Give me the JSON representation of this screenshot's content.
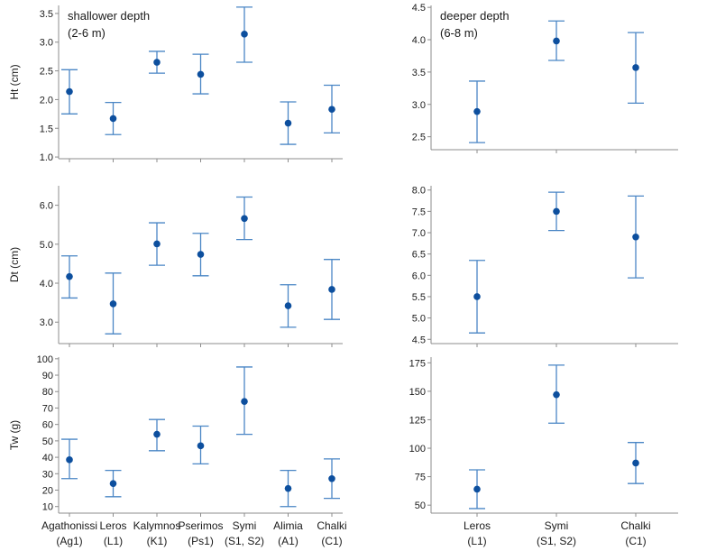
{
  "colors": {
    "point": "#0d4f9e",
    "errorbar": "#4a86c5",
    "axis": "#8c8c8c"
  },
  "chart_data": [
    {
      "id": "ht-shallow",
      "type": "scatter",
      "title": "shallower depth",
      "subtitle": "(2-6 m)",
      "ylabel": "Ht (cm)",
      "ylim": [
        0.97,
        3.64
      ],
      "yticks": [
        "1.0",
        "1.5",
        "2.0",
        "2.5",
        "3.0",
        "3.5"
      ],
      "ytick_values": [
        1.0,
        1.5,
        2.0,
        2.5,
        3.0,
        3.5
      ],
      "categories": [],
      "values": [
        2.14,
        1.67,
        2.65,
        2.44,
        3.14,
        1.59,
        1.83
      ],
      "lower": [
        1.75,
        1.39,
        2.46,
        2.1,
        2.65,
        1.22,
        1.42
      ],
      "upper": [
        2.52,
        1.95,
        2.84,
        2.79,
        3.61,
        1.96,
        2.25
      ]
    },
    {
      "id": "dt-shallow",
      "type": "scatter",
      "title": "",
      "subtitle": "",
      "ylabel": "Dt (cm)",
      "ylim": [
        2.45,
        6.5
      ],
      "yticks": [
        "3.0",
        "4.0",
        "5.0",
        "6.0"
      ],
      "ytick_values": [
        3.0,
        4.0,
        5.0,
        6.0
      ],
      "categories": [],
      "values": [
        4.17,
        3.47,
        5.01,
        4.74,
        5.66,
        3.42,
        3.84
      ],
      "lower": [
        3.62,
        2.7,
        4.46,
        4.19,
        5.12,
        2.87,
        3.07
      ],
      "upper": [
        4.7,
        4.26,
        5.55,
        5.28,
        6.21,
        3.96,
        4.61
      ]
    },
    {
      "id": "tw-shallow",
      "type": "scatter",
      "title": "",
      "subtitle": "",
      "ylabel": "Tw (g)",
      "ylim": [
        6,
        101
      ],
      "yticks": [
        "10",
        "20",
        "30",
        "40",
        "50",
        "60",
        "70",
        "80",
        "90",
        "100"
      ],
      "ytick_values": [
        10,
        20,
        30,
        40,
        50,
        60,
        70,
        80,
        90,
        100
      ],
      "categories": [
        "Agathonissi",
        "Leros",
        "Kalymnos",
        "Pserimos",
        "Symi",
        "Alimia",
        "Chalki"
      ],
      "codes": [
        "(Ag1)",
        "(L1)",
        "(K1)",
        "(Ps1)",
        "(S1, S2)",
        "(A1)",
        "(C1)"
      ],
      "values": [
        38.5,
        24,
        54,
        47,
        74,
        21,
        27
      ],
      "lower": [
        27,
        16,
        44,
        36,
        54,
        10,
        15
      ],
      "upper": [
        51,
        32,
        63,
        59,
        95,
        32,
        39
      ]
    },
    {
      "id": "ht-deep",
      "type": "scatter",
      "title": "deeper depth",
      "subtitle": "(6-8 m)",
      "ylabel": "",
      "ylim": [
        2.3,
        4.53
      ],
      "yticks": [
        "2.5",
        "3.0",
        "3.5",
        "4.0",
        "4.5"
      ],
      "ytick_values": [
        2.5,
        3.0,
        3.5,
        4.0,
        4.5
      ],
      "categories": [],
      "values": [
        2.89,
        3.98,
        3.57
      ],
      "lower": [
        2.41,
        3.68,
        3.02
      ],
      "upper": [
        3.36,
        4.29,
        4.11
      ]
    },
    {
      "id": "dt-deep",
      "type": "scatter",
      "title": "",
      "subtitle": "",
      "ylabel": "",
      "ylim": [
        4.4,
        8.1
      ],
      "yticks": [
        "4.5",
        "5.0",
        "5.5",
        "6.0",
        "6.5",
        "7.0",
        "7.5",
        "8.0"
      ],
      "ytick_values": [
        4.5,
        5.0,
        5.5,
        6.0,
        6.5,
        7.0,
        7.5,
        8.0
      ],
      "categories": [],
      "values": [
        5.5,
        7.5,
        6.9
      ],
      "lower": [
        4.65,
        7.05,
        5.94
      ],
      "upper": [
        6.35,
        7.95,
        7.86
      ]
    },
    {
      "id": "tw-deep",
      "type": "scatter",
      "title": "",
      "subtitle": "",
      "ylabel": "",
      "ylim": [
        43,
        180
      ],
      "yticks": [
        "50",
        "75",
        "100",
        "125",
        "150",
        "175"
      ],
      "ytick_values": [
        50,
        75,
        100,
        125,
        150,
        175
      ],
      "categories": [
        "Leros",
        "Symi",
        "Chalki"
      ],
      "codes": [
        "(L1)",
        "(S1, S2)",
        "(C1)"
      ],
      "values": [
        64,
        147,
        87
      ],
      "lower": [
        47,
        122,
        69
      ],
      "upper": [
        81,
        173,
        105
      ]
    }
  ]
}
